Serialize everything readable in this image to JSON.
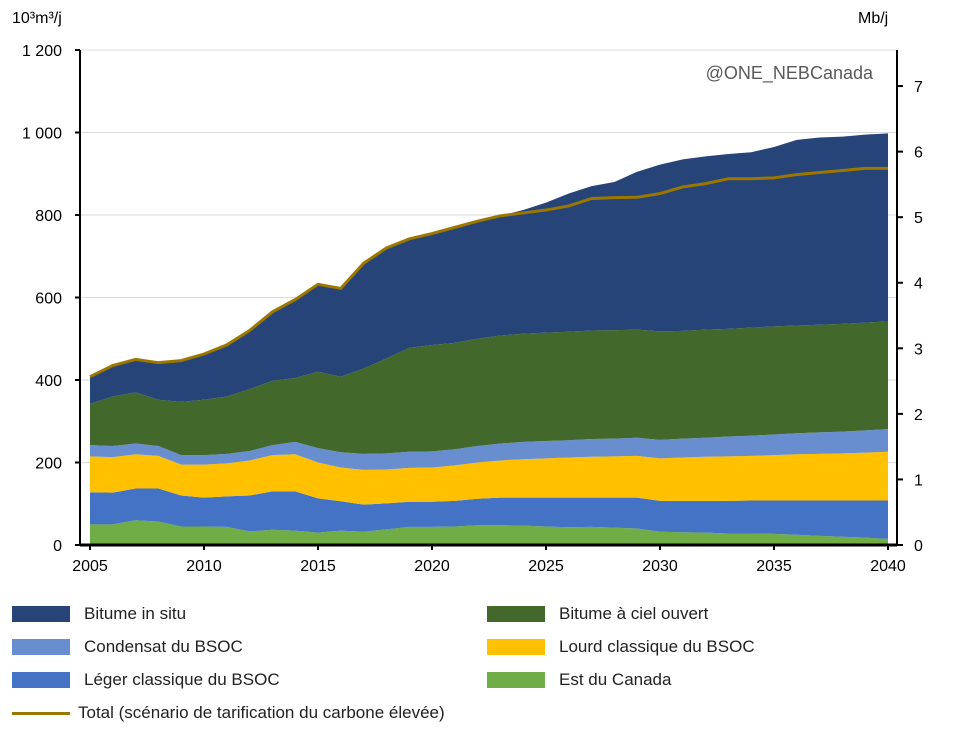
{
  "chart_data": {
    "type": "area",
    "stacked": true,
    "units_left": "10³m³/j",
    "units_right": "Mb/j",
    "watermark": "@ONE_NEBCanada",
    "x": [
      2005,
      2006,
      2007,
      2008,
      2009,
      2010,
      2011,
      2012,
      2013,
      2014,
      2015,
      2016,
      2017,
      2018,
      2019,
      2020,
      2021,
      2022,
      2023,
      2024,
      2025,
      2026,
      2027,
      2028,
      2029,
      2030,
      2031,
      2032,
      2033,
      2034,
      2035,
      2036,
      2037,
      2038,
      2039,
      2040
    ],
    "xticks": [
      "2005",
      "2010",
      "2015",
      "2020",
      "2025",
      "2030",
      "2035",
      "2040"
    ],
    "ylim": [
      0,
      1200
    ],
    "yticks": [
      "0",
      "200",
      "400",
      "600",
      "800",
      "1 000",
      "1 200"
    ],
    "y2lim": [
      0,
      7.55
    ],
    "y2ticks": [
      "0",
      "1",
      "2",
      "3",
      "4",
      "5",
      "6",
      "7"
    ],
    "grid": true,
    "legend_placement": "bottom",
    "series": [
      {
        "name": "Est du Canada",
        "color": "#70AD47",
        "values": [
          50,
          50,
          60,
          57,
          45,
          45,
          44,
          33,
          37,
          35,
          30,
          35,
          32,
          38,
          44,
          44,
          45,
          48,
          48,
          47,
          45,
          43,
          44,
          42,
          40,
          32,
          31,
          30,
          28,
          28,
          27,
          25,
          22,
          20,
          18,
          15
        ]
      },
      {
        "name": "Léger classique du BSOC",
        "color": "#4472C4",
        "values": [
          78,
          77,
          77,
          80,
          75,
          70,
          74,
          87,
          93,
          95,
          83,
          71,
          66,
          63,
          61,
          61,
          62,
          64,
          67,
          68,
          70,
          72,
          71,
          73,
          75,
          75,
          76,
          77,
          79,
          80,
          81,
          83,
          86,
          88,
          90,
          93
        ]
      },
      {
        "name": "Lourd classique du BSOC",
        "color": "#FFC000",
        "values": [
          87,
          86,
          83,
          79,
          75,
          80,
          80,
          85,
          88,
          90,
          87,
          82,
          84,
          82,
          82,
          83,
          86,
          88,
          90,
          93,
          95,
          97,
          99,
          100,
          101,
          103,
          105,
          107,
          108,
          108,
          110,
          112,
          113,
          114,
          116,
          118
        ]
      },
      {
        "name": "Condensat du BSOC",
        "color": "#698ED0",
        "values": [
          27,
          27,
          26,
          24,
          23,
          23,
          23,
          23,
          24,
          30,
          35,
          37,
          39,
          39,
          39,
          39,
          39,
          40,
          41,
          42,
          42,
          42,
          43,
          43,
          44,
          45,
          46,
          46,
          48,
          49,
          50,
          51,
          52,
          53,
          54,
          55
        ]
      },
      {
        "name": "Bitume à ciel ouvert",
        "color": "#43682B",
        "values": [
          100,
          120,
          124,
          112,
          129,
          134,
          139,
          150,
          156,
          155,
          185,
          183,
          207,
          230,
          252,
          258,
          258,
          260,
          262,
          262,
          263,
          263,
          263,
          263,
          262,
          263,
          261,
          262,
          261,
          262,
          262,
          261,
          261,
          261,
          261,
          261
        ]
      },
      {
        "name": "Bitume in situ",
        "color": "#264478",
        "values": [
          66,
          75,
          80,
          90,
          100,
          111,
          125,
          142,
          167,
          190,
          212,
          214,
          255,
          268,
          264,
          270,
          280,
          285,
          290,
          300,
          315,
          335,
          350,
          359,
          383,
          404,
          416,
          420,
          424,
          425,
          435,
          450,
          454,
          454,
          456,
          456
        ]
      }
    ],
    "line": {
      "name": "Total (scénario de tarification du carbone élevée)",
      "color": "#9C7700",
      "values": [
        408,
        435,
        450,
        442,
        447,
        463,
        485,
        520,
        565,
        595,
        632,
        622,
        683,
        720,
        742,
        755,
        770,
        785,
        798,
        805,
        812,
        822,
        840,
        842,
        843,
        852,
        868,
        876,
        888,
        888,
        890,
        898,
        903,
        908,
        913,
        913
      ]
    }
  },
  "legend": [
    {
      "label": "Bitume in situ",
      "color": "#264478",
      "type": "area"
    },
    {
      "label": "Bitume à ciel ouvert",
      "color": "#43682B",
      "type": "area"
    },
    {
      "label": "Condensat du BSOC",
      "color": "#698ED0",
      "type": "area"
    },
    {
      "label": "Lourd classique du BSOC",
      "color": "#FFC000",
      "type": "area"
    },
    {
      "label": "Léger classique du BSOC",
      "color": "#4472C4",
      "type": "area"
    },
    {
      "label": "Est du Canada",
      "color": "#70AD47",
      "type": "area"
    },
    {
      "label": "Total (scénario de tarification du carbone élevée)",
      "color": "#9C7700",
      "type": "line"
    }
  ]
}
